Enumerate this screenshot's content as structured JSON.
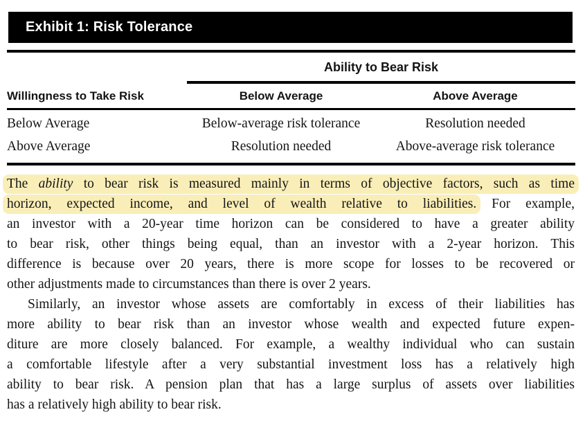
{
  "exhibit": {
    "title": "Exhibit 1: Risk Tolerance"
  },
  "table": {
    "span_header": "Ability to Bear Risk",
    "col_headers": [
      "Willingness to Take Risk",
      "Below Average",
      "Above Average"
    ],
    "rows": [
      [
        "Below Average",
        "Below-average risk tolerance",
        "Resolution needed"
      ],
      [
        "Above Average",
        "Resolution needed",
        "Above-average risk tolerance"
      ]
    ]
  },
  "colors": {
    "header_bar": "#000000",
    "highlight": "#faeeb8",
    "text": "#141414"
  },
  "body": {
    "paragraphs": [
      {
        "indent": false,
        "lines": [
          {
            "justify": true,
            "segments": [
              {
                "t": "The ",
                "hl": true
              },
              {
                "t": "ability",
                "hl": true,
                "it": true
              },
              {
                "t": " to bear risk is measured mainly in terms of objective factors, such as time",
                "hl": true
              }
            ]
          },
          {
            "justify": true,
            "segments": [
              {
                "t": "horizon, expected income, and level of wealth relative to liabilities.",
                "hl": true
              },
              {
                "t": " For example,"
              }
            ]
          },
          {
            "justify": true,
            "segments": [
              {
                "t": "an investor with a 20-year time horizon can be considered to have a greater ability"
              }
            ]
          },
          {
            "justify": true,
            "segments": [
              {
                "t": "to bear risk, other things being equal, than an investor with a 2-year horizon. This"
              }
            ]
          },
          {
            "justify": true,
            "segments": [
              {
                "t": "difference is because over 20 years, there is more scope for losses to be recovered or"
              }
            ]
          },
          {
            "justify": false,
            "segments": [
              {
                "t": "other adjustments made to circumstances than there is over 2 years."
              }
            ]
          }
        ]
      },
      {
        "indent": true,
        "lines": [
          {
            "justify": true,
            "segments": [
              {
                "t": "Similarly, an investor whose assets are comfortably in excess of their liabilities has"
              }
            ]
          },
          {
            "justify": true,
            "segments": [
              {
                "t": "more ability to bear risk than an investor whose wealth and expected future expen-"
              }
            ]
          },
          {
            "justify": true,
            "segments": [
              {
                "t": "diture are more closely balanced. For example, a wealthy individual who can sustain"
              }
            ]
          },
          {
            "justify": true,
            "segments": [
              {
                "t": "a comfortable lifestyle after a very substantial investment loss has a relatively high"
              }
            ]
          },
          {
            "justify": true,
            "segments": [
              {
                "t": "ability to bear risk. A pension plan that has a large surplus of assets over liabilities"
              }
            ]
          },
          {
            "justify": false,
            "segments": [
              {
                "t": "has a relatively high ability to bear risk."
              }
            ]
          }
        ]
      }
    ]
  }
}
